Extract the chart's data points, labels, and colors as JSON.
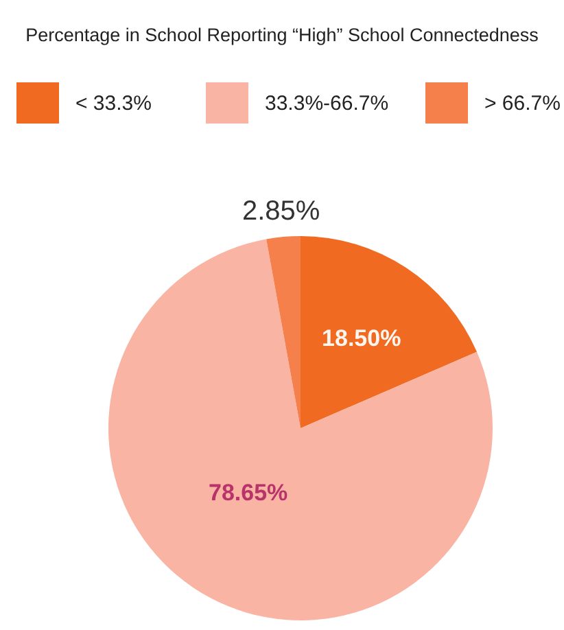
{
  "chart_data": {
    "type": "pie",
    "title": "Percentage in School Reporting “High” School Connectedness",
    "categories": [
      "< 33.3%",
      "33.3%-66.7%",
      "> 66.7%"
    ],
    "values": [
      18.5,
      78.65,
      2.85
    ],
    "value_labels": [
      "18.50%",
      "78.65%",
      "2.85%"
    ],
    "colors": [
      "#f06a22",
      "#f9b4a4",
      "#f5804c"
    ],
    "legend": "top"
  }
}
